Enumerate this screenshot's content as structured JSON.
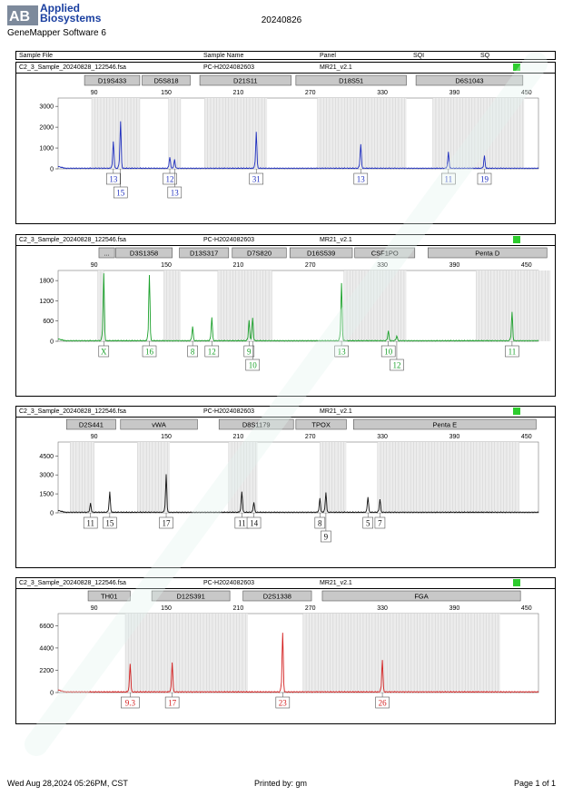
{
  "header": {
    "brand_line1": "Applied",
    "brand_line2": "Biosystems",
    "software": "GeneMapper Software 6",
    "date": "20240826",
    "columns": [
      "Sample File",
      "Sample Name",
      "Panel",
      "SQI",
      "SQ"
    ]
  },
  "footer": {
    "printed_on": "Wed Aug 28,2024 05:26PM, CST",
    "printed_by": "Printed by: gm",
    "page": "Page 1 of 1"
  },
  "colors": {
    "status": "#2ecc2e",
    "blue": "#1f2fbf",
    "green": "#1aa02a",
    "black": "#111111",
    "red": "#d42020"
  },
  "chart_data": [
    {
      "type": "line",
      "sample_file": "C2_3_Sample_20240828_122546.fsa",
      "sample_name": "PC-H2024082603",
      "panel": "MR21_v2.1",
      "color": "#1f2fbf",
      "xlim": [
        60,
        460
      ],
      "x_ticks": [
        90,
        150,
        210,
        270,
        330,
        390,
        450
      ],
      "ylim": [
        0,
        3400
      ],
      "y_ticks": [
        0,
        1000,
        2000,
        3000
      ],
      "loci": [
        {
          "name": "D19S433",
          "start": 82,
          "end": 128
        },
        {
          "name": "D5S818",
          "start": 130,
          "end": 170
        },
        {
          "name": "D21S11",
          "start": 178,
          "end": 254
        },
        {
          "name": "D18S51",
          "start": 258,
          "end": 350
        },
        {
          "name": "D6S1043",
          "start": 358,
          "end": 447
        }
      ],
      "bins": [
        [
          88,
          128
        ],
        [
          152,
          162
        ],
        [
          182,
          234
        ],
        [
          276,
          350
        ],
        [
          372,
          448
        ]
      ],
      "peaks": [
        {
          "x": 106,
          "h": 1300,
          "label": "13",
          "row": 1
        },
        {
          "x": 112,
          "h": 2250,
          "label": "15",
          "row": 2
        },
        {
          "x": 153,
          "h": 550,
          "label": "12",
          "row": 1
        },
        {
          "x": 157,
          "h": 420,
          "label": "13",
          "row": 2
        },
        {
          "x": 225,
          "h": 1750,
          "label": "31",
          "row": 1
        },
        {
          "x": 312,
          "h": 1150,
          "label": "13",
          "row": 1
        },
        {
          "x": 385,
          "h": 780,
          "label": "11",
          "row": 1
        },
        {
          "x": 415,
          "h": 600,
          "label": "19",
          "row": 1
        }
      ]
    },
    {
      "type": "line",
      "sample_file": "C2_3_Sample_20240828_122546.fsa",
      "sample_name": "PC-H2024082603",
      "panel": "MR21_v2.1",
      "color": "#1aa02a",
      "xlim": [
        60,
        460
      ],
      "x_ticks": [
        90,
        150,
        210,
        270,
        330,
        390,
        450
      ],
      "ylim": [
        0,
        2100
      ],
      "y_ticks": [
        0,
        600,
        1200,
        1800
      ],
      "loci": [
        {
          "name": "...",
          "start": 94,
          "end": 107
        },
        {
          "name": "D3S1358",
          "start": 108,
          "end": 155
        },
        {
          "name": "D13S317",
          "start": 161,
          "end": 202
        },
        {
          "name": "D7S820",
          "start": 205,
          "end": 250
        },
        {
          "name": "D16S539",
          "start": 253,
          "end": 305
        },
        {
          "name": "CSF1PO",
          "start": 307,
          "end": 357
        },
        {
          "name": "Penta D",
          "start": 368,
          "end": 467
        }
      ],
      "bins": [
        [
          93,
          98
        ],
        [
          148,
          162
        ],
        [
          193,
          238
        ],
        [
          298,
          350
        ],
        [
          408,
          470
        ]
      ],
      "peaks": [
        {
          "x": 98,
          "h": 2000,
          "label": "X",
          "row": 1
        },
        {
          "x": 136,
          "h": 1950,
          "label": "16",
          "row": 1
        },
        {
          "x": 172,
          "h": 420,
          "label": "8",
          "row": 1
        },
        {
          "x": 188,
          "h": 700,
          "label": "12",
          "row": 1
        },
        {
          "x": 219,
          "h": 600,
          "label": "9",
          "row": 1
        },
        {
          "x": 222,
          "h": 680,
          "label": "10",
          "row": 2
        },
        {
          "x": 296,
          "h": 1700,
          "label": "13",
          "row": 1
        },
        {
          "x": 335,
          "h": 300,
          "label": "10",
          "row": 1
        },
        {
          "x": 342,
          "h": 140,
          "label": "12",
          "row": 2
        },
        {
          "x": 438,
          "h": 850,
          "label": "11",
          "row": 1
        }
      ]
    },
    {
      "type": "line",
      "sample_file": "C2_3_Sample_20240828_122546.fsa",
      "sample_name": "PC-H2024082603",
      "panel": "MR21_v2.1",
      "color": "#111111",
      "xlim": [
        60,
        460
      ],
      "x_ticks": [
        90,
        150,
        210,
        270,
        330,
        390,
        450
      ],
      "ylim": [
        0,
        5600
      ],
      "y_ticks": [
        0,
        1500,
        3000,
        4500
      ],
      "loci": [
        {
          "name": "D2S441",
          "start": 67,
          "end": 108
        },
        {
          "name": "vWA",
          "start": 112,
          "end": 176
        },
        {
          "name": "D8S1179",
          "start": 194,
          "end": 256
        },
        {
          "name": "TPOX",
          "start": 258,
          "end": 300
        },
        {
          "name": "Penta E",
          "start": 306,
          "end": 458
        }
      ],
      "bins": [
        [
          70,
          90
        ],
        [
          126,
          153
        ],
        [
          202,
          226
        ],
        [
          278,
          300
        ],
        [
          326,
          444
        ]
      ],
      "peaks": [
        {
          "x": 87,
          "h": 700,
          "label": "11",
          "row": 1
        },
        {
          "x": 103,
          "h": 1600,
          "label": "15",
          "row": 1
        },
        {
          "x": 150,
          "h": 3000,
          "label": "17",
          "row": 1
        },
        {
          "x": 213,
          "h": 1650,
          "label": "11",
          "row": 1
        },
        {
          "x": 223,
          "h": 800,
          "label": "14",
          "row": 1
        },
        {
          "x": 278,
          "h": 1100,
          "label": "8",
          "row": 1
        },
        {
          "x": 283,
          "h": 1600,
          "label": "9",
          "row": 2
        },
        {
          "x": 318,
          "h": 1200,
          "label": "5",
          "row": 1
        },
        {
          "x": 328,
          "h": 1050,
          "label": "7",
          "row": 1
        }
      ]
    },
    {
      "type": "line",
      "sample_file": "C2_3_Sample_20240828_122546.fsa",
      "sample_name": "PC-H2024082603",
      "panel": "MR21_v2.1",
      "color": "#d42020",
      "xlim": [
        60,
        460
      ],
      "x_ticks": [
        90,
        150,
        210,
        270,
        330,
        390,
        450
      ],
      "ylim": [
        0,
        7800
      ],
      "y_ticks": [
        0,
        2200,
        4400,
        6600
      ],
      "loci": [
        {
          "name": "TH01",
          "start": 85,
          "end": 120
        },
        {
          "name": "D12S391",
          "start": 138,
          "end": 203
        },
        {
          "name": "D2S1338",
          "start": 214,
          "end": 271
        },
        {
          "name": "FGA",
          "start": 280,
          "end": 445
        }
      ],
      "bins": [
        [
          116,
          218
        ],
        [
          264,
          428
        ]
      ],
      "peaks": [
        {
          "x": 120,
          "h": 2800,
          "label": "9.3",
          "row": 1
        },
        {
          "x": 155,
          "h": 2900,
          "label": "17",
          "row": 1
        },
        {
          "x": 247,
          "h": 5800,
          "label": "23",
          "row": 1
        },
        {
          "x": 330,
          "h": 3200,
          "label": "26",
          "row": 1
        }
      ]
    }
  ]
}
